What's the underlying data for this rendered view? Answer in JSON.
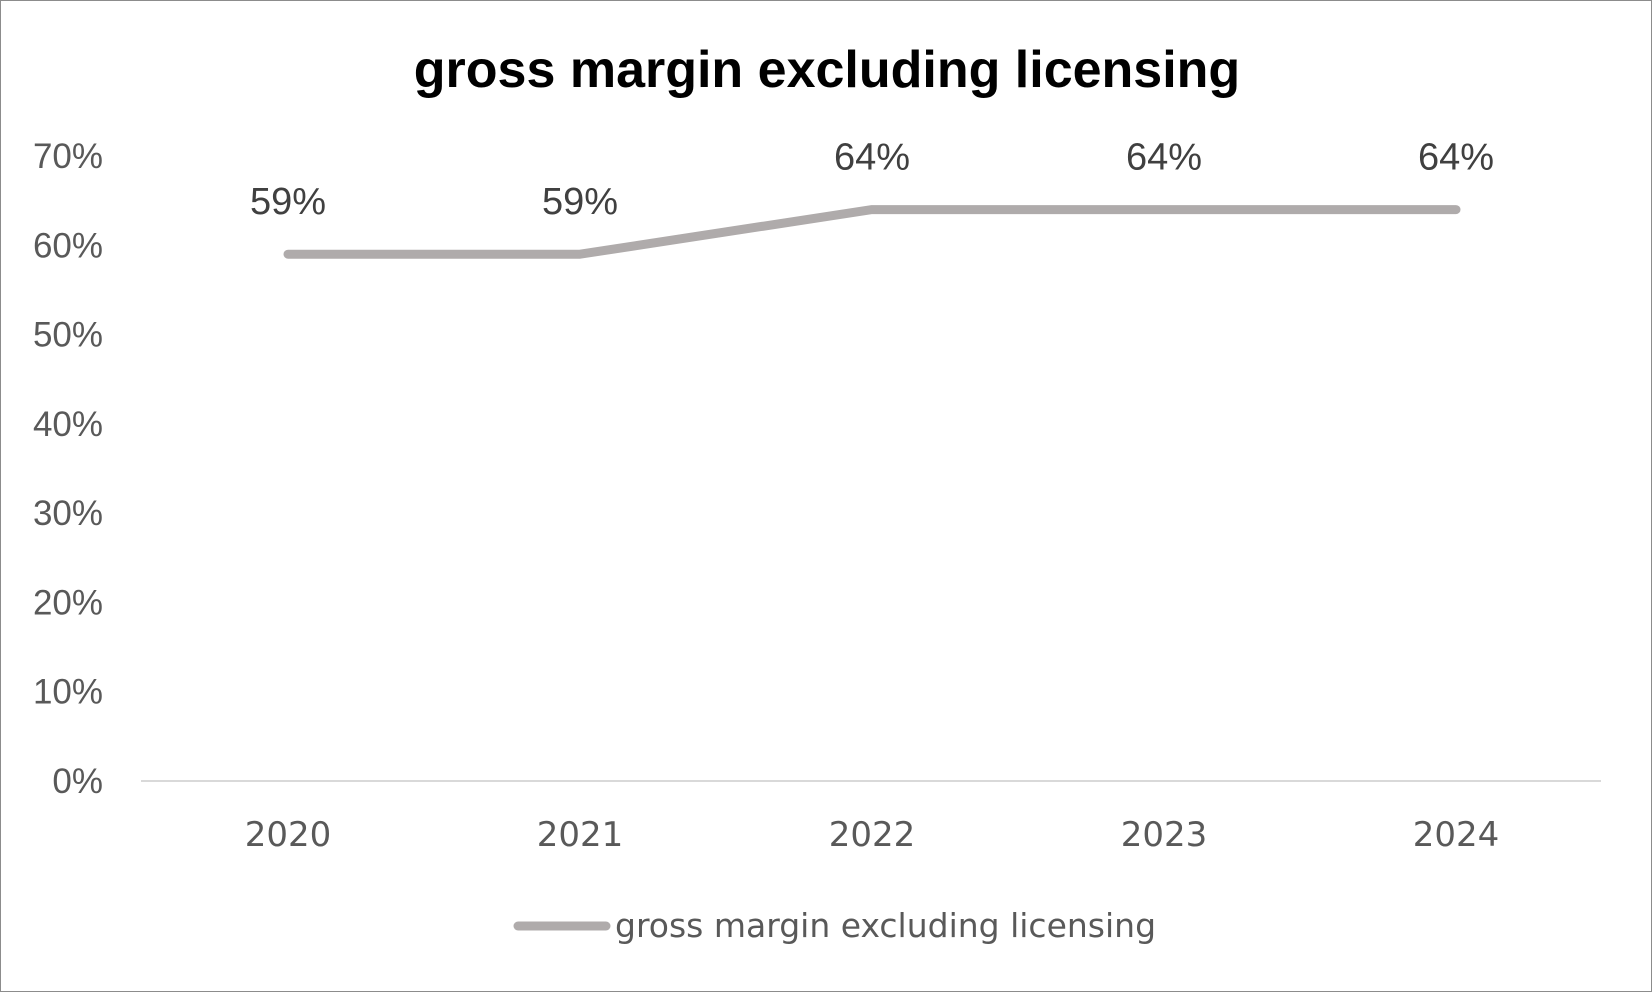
{
  "chart_data": {
    "type": "line",
    "title": "gross margin excluding licensing",
    "categories": [
      "2020",
      "2021",
      "2022",
      "2023",
      "2024"
    ],
    "series": [
      {
        "name": "gross margin excluding licensing",
        "values": [
          59,
          59,
          64,
          64,
          64
        ],
        "data_labels": [
          "59%",
          "59%",
          "64%",
          "64%",
          "64%"
        ],
        "color": "#afabab"
      }
    ],
    "yticks": [
      "0%",
      "10%",
      "20%",
      "30%",
      "40%",
      "50%",
      "60%",
      "70%"
    ],
    "ylim": [
      0,
      70
    ],
    "xlabel": "",
    "ylabel": "",
    "grid": false,
    "legend_position": "bottom",
    "axis_color": "#d9d9d9"
  }
}
